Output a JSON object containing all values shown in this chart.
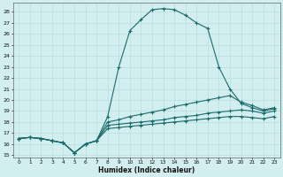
{
  "xlabel": "Humidex (Indice chaleur)",
  "bg_color": "#d2eeee",
  "line_color": "#1a6b6b",
  "grid_color": "#b8dede",
  "xlim": [
    -0.5,
    23.5
  ],
  "ylim": [
    14.8,
    28.8
  ],
  "xticks": [
    0,
    1,
    2,
    3,
    4,
    5,
    6,
    7,
    8,
    9,
    10,
    11,
    12,
    13,
    14,
    15,
    16,
    17,
    18,
    19,
    20,
    21,
    22,
    23
  ],
  "yticks": [
    15,
    16,
    17,
    18,
    19,
    20,
    21,
    22,
    23,
    24,
    25,
    26,
    27,
    28
  ],
  "series": [
    {
      "x": [
        0,
        1,
        2,
        3,
        4,
        5,
        6,
        7,
        8,
        9,
        10,
        11,
        12,
        13,
        14,
        15,
        16,
        17,
        18,
        19,
        20,
        21,
        22,
        23
      ],
      "y": [
        16.5,
        16.6,
        16.5,
        16.3,
        16.1,
        15.2,
        16.0,
        16.3,
        18.5,
        23.0,
        26.3,
        27.3,
        28.2,
        28.3,
        28.2,
        27.7,
        27.0,
        26.5,
        23.0,
        21.0,
        19.7,
        19.3,
        19.0,
        19.2
      ]
    },
    {
      "x": [
        0,
        1,
        2,
        3,
        4,
        5,
        6,
        7,
        8,
        9,
        10,
        11,
        12,
        13,
        14,
        15,
        16,
        17,
        18,
        19,
        20,
        21,
        22,
        23
      ],
      "y": [
        16.5,
        16.6,
        16.5,
        16.3,
        16.1,
        15.2,
        16.0,
        16.3,
        18.0,
        18.2,
        18.5,
        18.7,
        18.9,
        19.1,
        19.4,
        19.6,
        19.8,
        20.0,
        20.2,
        20.4,
        19.8,
        19.5,
        19.1,
        19.3
      ]
    },
    {
      "x": [
        0,
        1,
        2,
        3,
        4,
        5,
        6,
        7,
        8,
        9,
        10,
        11,
        12,
        13,
        14,
        15,
        16,
        17,
        18,
        19,
        20,
        21,
        22,
        23
      ],
      "y": [
        16.5,
        16.6,
        16.5,
        16.3,
        16.1,
        15.2,
        16.0,
        16.3,
        17.7,
        17.8,
        17.9,
        18.0,
        18.1,
        18.2,
        18.4,
        18.5,
        18.6,
        18.8,
        18.9,
        19.0,
        19.1,
        19.0,
        18.8,
        19.0
      ]
    },
    {
      "x": [
        0,
        1,
        2,
        3,
        4,
        5,
        6,
        7,
        8,
        9,
        10,
        11,
        12,
        13,
        14,
        15,
        16,
        17,
        18,
        19,
        20,
        21,
        22,
        23
      ],
      "y": [
        16.5,
        16.6,
        16.5,
        16.3,
        16.1,
        15.2,
        16.0,
        16.3,
        17.4,
        17.5,
        17.6,
        17.7,
        17.8,
        17.9,
        18.0,
        18.1,
        18.2,
        18.3,
        18.4,
        18.5,
        18.5,
        18.4,
        18.3,
        18.5
      ]
    }
  ]
}
